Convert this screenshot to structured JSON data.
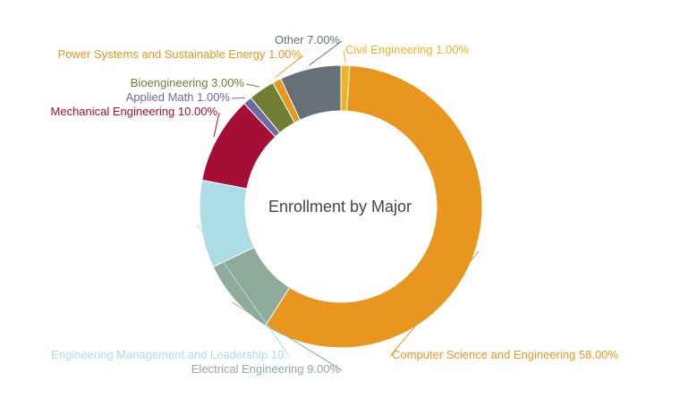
{
  "chart_data": {
    "type": "donut",
    "title": "Enrollment by Major",
    "categories": [
      "Civil Engineering",
      "Computer Science and Engineering",
      "Electrical Engineering",
      "Engineering Management and Leadership",
      "Mechanical Engineering",
      "Applied Math",
      "Bioengineering",
      "Power Systems and Sustainable Energy",
      "Other"
    ],
    "values": [
      1,
      58,
      9,
      10,
      10,
      1,
      3,
      1,
      7
    ],
    "value_labels": [
      "1.00%",
      "58.00%",
      "9.00%",
      "10.",
      "10.00%",
      "1.00%",
      "3.00%",
      "1.00%",
      "7.00%"
    ],
    "colors": [
      "#f0b323",
      "#e8961e",
      "#8eab9c",
      "#acdce6",
      "#a50e37",
      "#6b6aa6",
      "#717e34",
      "#e8961e",
      "#676f78"
    ]
  }
}
